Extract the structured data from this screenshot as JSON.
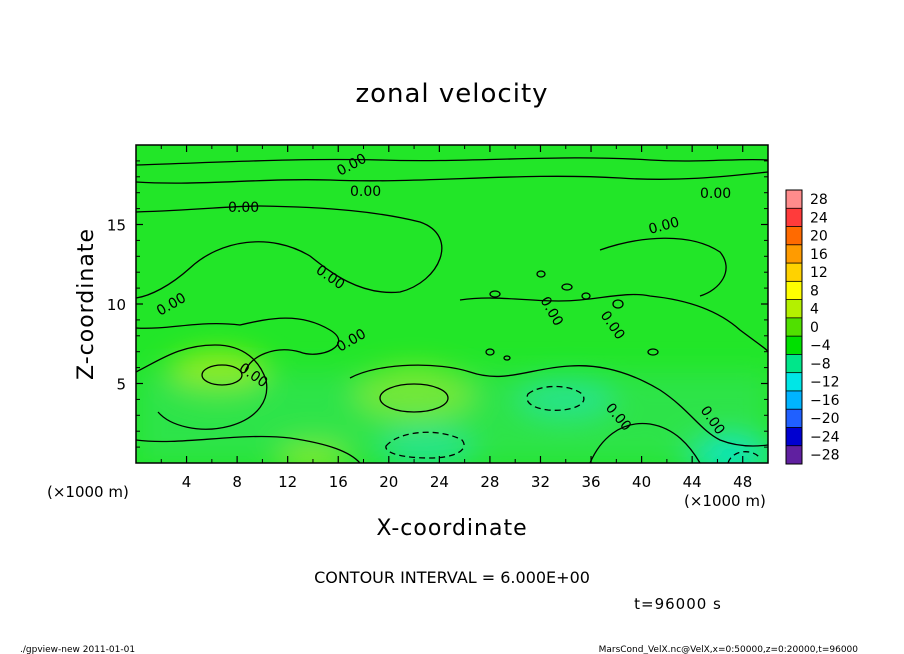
{
  "chart_data": {
    "type": "heatmap",
    "title": "zonal velocity",
    "xlabel": "X-coordinate",
    "ylabel": "Z-coordinate",
    "x_unit_left": "(×1000 m)",
    "x_unit_right": "(×1000 m)",
    "xlim": [
      0,
      50
    ],
    "ylim": [
      0,
      20
    ],
    "x_ticks": [
      4,
      8,
      12,
      16,
      20,
      24,
      28,
      32,
      36,
      40,
      44,
      48
    ],
    "y_ticks": [
      5,
      10,
      15
    ],
    "colorbar": {
      "levels": [
        28,
        24,
        20,
        16,
        12,
        8,
        4,
        0,
        -4,
        -8,
        -12,
        -16,
        -20,
        -24,
        -28
      ],
      "level_labels": [
        "28",
        "24",
        "20",
        "16",
        "12",
        "8",
        "4",
        "0",
        "−4",
        "−8",
        "−12",
        "−16",
        "−20",
        "−24",
        "−28"
      ],
      "colors": [
        "#ff8c8c",
        "#ff3b3b",
        "#ff6a00",
        "#ff9b00",
        "#ffd200",
        "#ffff00",
        "#b4f000",
        "#50e000",
        "#00e000",
        "#00e68a",
        "#00e6e6",
        "#00b4ff",
        "#2060ff",
        "#0000d0",
        "#6020a0"
      ]
    },
    "contour_label": "0.00",
    "contour_interval_text": "CONTOUR INTERVAL = 6.000E+00",
    "time_text": "t=96000 s",
    "field_features": [
      {
        "kind": "positive",
        "x": 6.5,
        "z": 5.6,
        "value": 4
      },
      {
        "kind": "positive",
        "x": 22,
        "z": 4.3,
        "value": 5
      },
      {
        "kind": "positive",
        "x": 14,
        "z": 0.5,
        "value": 3
      },
      {
        "kind": "negative",
        "x": 34,
        "z": 4.0,
        "value": -4
      },
      {
        "kind": "negative",
        "x": 23,
        "z": 1.0,
        "value": -4
      },
      {
        "kind": "negative",
        "x": 47,
        "z": 0.5,
        "value": -4
      }
    ]
  },
  "footer": {
    "left": "./gpview-new   2011-01-01",
    "right": "MarsCond_VelX.nc@VelX,x=0:50000,z=0:20000,t=96000"
  }
}
